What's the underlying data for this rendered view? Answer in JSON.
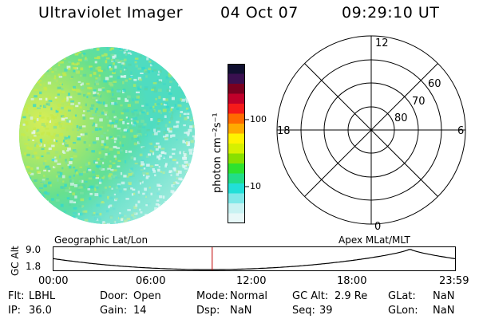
{
  "header": {
    "instrument": "Ultraviolet Imager",
    "date": "04 Oct 07",
    "time": "09:29:10 UT"
  },
  "colorbar": {
    "label": "photon cm⁻²s⁻¹",
    "ticks": [
      {
        "value": 100,
        "label": "100"
      },
      {
        "value": 10,
        "label": "10"
      }
    ],
    "colors": [
      "#101030",
      "#3a1050",
      "#7a0020",
      "#c0002a",
      "#f51a1a",
      "#ff6a00",
      "#ffaa00",
      "#fff200",
      "#d6f000",
      "#88e000",
      "#2ee22e",
      "#22dd88",
      "#22dfd8",
      "#7fe8e8",
      "#c8f2f2",
      "#e8f8f8"
    ]
  },
  "polar": {
    "mlt_labels": {
      "top": "12",
      "left": "18",
      "right": "6",
      "bottom": "0"
    },
    "lat_labels": [
      "60",
      "70",
      "80"
    ]
  },
  "timeline": {
    "left_title": "Geographic Lat/Lon",
    "right_title": "Apex MLat/MLT",
    "axis_label": "GC Alt",
    "ytick_high": "9.0",
    "ytick_low": "1.8",
    "time_ticks": [
      "00:00",
      "06:00",
      "12:00",
      "18:00",
      "23:59"
    ],
    "marker_hour": 9.486
  },
  "footer": {
    "row1": [
      {
        "key": "Flt:",
        "value": "LBHL"
      },
      {
        "key": "Door:",
        "value": "Open"
      },
      {
        "key": "Mode:",
        "value": "Normal"
      },
      {
        "key": "GC Alt:",
        "value": "2.9 Re"
      },
      {
        "key": "GLat:",
        "value": "NaN"
      }
    ],
    "row2": [
      {
        "key": "IP:",
        "value": "36.0"
      },
      {
        "key": "Gain:",
        "value": "14"
      },
      {
        "key": "Dsp:",
        "value": "NaN"
      },
      {
        "key": "Seq:",
        "value": "39"
      },
      {
        "key": "GLon:",
        "value": "NaN"
      }
    ]
  }
}
